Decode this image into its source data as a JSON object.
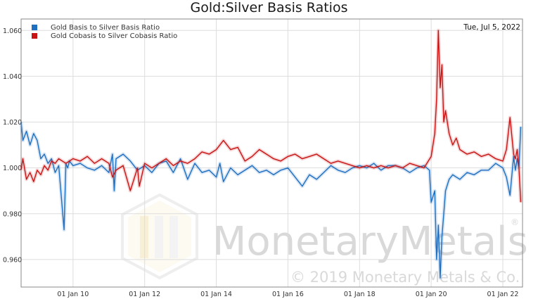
{
  "chart_data": {
    "type": "line",
    "title": "Gold:Silver Basis Ratios",
    "date_label": "Tue, Jul 5, 2022",
    "watermark": {
      "brand": "MonetaryMetals",
      "registered": "®",
      "copyright": "© 2019 Monetary Metals & Co."
    },
    "x_ticks": [
      "01 Jan 10",
      "01 Jan 12",
      "01 Jan 14",
      "01 Jan 16",
      "01 Jan 18",
      "01 Jan 20",
      "01 Jan 22"
    ],
    "x_tick_years": [
      2010,
      2012,
      2014,
      2016,
      2018,
      2020,
      2022
    ],
    "xlim": [
      2008.55,
      2022.55
    ],
    "ylim": [
      0.948,
      1.065
    ],
    "y_ticks": [
      0.96,
      0.98,
      1.0,
      1.02,
      1.04,
      1.06
    ],
    "y_tick_labels": [
      "0.960",
      "0.980",
      "1.000",
      "1.020",
      "1.040",
      "1.060"
    ],
    "grid": true,
    "legend_position": "top-left",
    "series": [
      {
        "name": "Gold Basis to Silver Basis Ratio",
        "color": "#1f6fc0",
        "x": [
          2008.55,
          2008.6,
          2008.7,
          2008.8,
          2008.9,
          2009.0,
          2009.1,
          2009.2,
          2009.3,
          2009.4,
          2009.5,
          2009.6,
          2009.75,
          2009.8,
          2009.85,
          2009.9,
          2010.0,
          2010.2,
          2010.4,
          2010.6,
          2010.8,
          2011.0,
          2011.1,
          2011.15,
          2011.2,
          2011.4,
          2011.6,
          2011.8,
          2012.0,
          2012.2,
          2012.4,
          2012.6,
          2012.8,
          2013.0,
          2013.2,
          2013.4,
          2013.6,
          2013.8,
          2014.0,
          2014.1,
          2014.2,
          2014.4,
          2014.6,
          2014.8,
          2015.0,
          2015.2,
          2015.4,
          2015.6,
          2015.8,
          2016.0,
          2016.2,
          2016.4,
          2016.6,
          2016.8,
          2017.0,
          2017.2,
          2017.4,
          2017.6,
          2017.8,
          2018.0,
          2018.2,
          2018.4,
          2018.6,
          2018.8,
          2019.0,
          2019.2,
          2019.4,
          2019.6,
          2019.8,
          2019.95,
          2020.0,
          2020.1,
          2020.15,
          2020.2,
          2020.25,
          2020.3,
          2020.35,
          2020.4,
          2020.5,
          2020.6,
          2020.7,
          2020.8,
          2021.0,
          2021.2,
          2021.4,
          2021.6,
          2021.8,
          2022.0,
          2022.1,
          2022.2,
          2022.3,
          2022.35,
          2022.4,
          2022.45,
          2022.5
        ],
        "y": [
          1.02,
          1.012,
          1.016,
          1.01,
          1.015,
          1.012,
          1.004,
          1.006,
          1.002,
          1.004,
          0.998,
          1.001,
          0.973,
          1.002,
          1.0,
          1.003,
          1.001,
          1.002,
          1.0,
          0.999,
          1.001,
          0.998,
          1.006,
          0.99,
          1.004,
          1.006,
          1.003,
          0.999,
          1.001,
          0.998,
          1.002,
          1.003,
          0.998,
          1.004,
          0.995,
          1.002,
          0.998,
          0.999,
          0.996,
          1.002,
          0.994,
          1.0,
          0.997,
          0.999,
          1.001,
          0.998,
          0.999,
          0.997,
          0.999,
          1.0,
          0.996,
          0.992,
          0.997,
          0.995,
          0.998,
          1.001,
          0.999,
          0.998,
          1.0,
          1.001,
          1.0,
          1.002,
          0.999,
          1.001,
          1.001,
          1.0,
          0.998,
          1.0,
          1.001,
          0.999,
          0.985,
          0.99,
          0.96,
          0.975,
          0.952,
          0.97,
          0.98,
          0.99,
          0.995,
          0.997,
          0.996,
          0.995,
          0.998,
          0.997,
          0.999,
          0.999,
          1.002,
          1.0,
          0.996,
          0.988,
          1.005,
          0.999,
          1.004,
          1.0,
          1.018
        ]
      },
      {
        "name": "Gold Cobasis to Silver Cobasis Ratio",
        "color": "#c81414",
        "x": [
          2008.55,
          2008.6,
          2008.7,
          2008.8,
          2008.9,
          2009.0,
          2009.1,
          2009.2,
          2009.3,
          2009.4,
          2009.5,
          2009.6,
          2009.8,
          2010.0,
          2010.2,
          2010.4,
          2010.6,
          2010.8,
          2011.0,
          2011.1,
          2011.2,
          2011.4,
          2011.6,
          2011.8,
          2011.85,
          2012.0,
          2012.2,
          2012.4,
          2012.6,
          2012.8,
          2013.0,
          2013.2,
          2013.4,
          2013.6,
          2013.8,
          2014.0,
          2014.2,
          2014.4,
          2014.6,
          2014.8,
          2015.0,
          2015.2,
          2015.4,
          2015.6,
          2015.8,
          2016.0,
          2016.2,
          2016.4,
          2016.6,
          2016.8,
          2017.0,
          2017.2,
          2017.4,
          2017.6,
          2017.8,
          2018.0,
          2018.2,
          2018.4,
          2018.6,
          2018.8,
          2019.0,
          2019.2,
          2019.4,
          2019.6,
          2019.8,
          2020.0,
          2020.1,
          2020.15,
          2020.2,
          2020.25,
          2020.3,
          2020.35,
          2020.4,
          2020.5,
          2020.6,
          2020.7,
          2020.8,
          2021.0,
          2021.2,
          2021.4,
          2021.6,
          2021.8,
          2022.0,
          2022.1,
          2022.2,
          2022.3,
          2022.35,
          2022.4,
          2022.45,
          2022.5
        ],
        "y": [
          0.999,
          1.004,
          0.995,
          0.998,
          0.994,
          0.999,
          0.997,
          1.001,
          0.999,
          1.003,
          1.002,
          1.004,
          1.002,
          1.004,
          1.003,
          1.005,
          1.002,
          1.004,
          1.002,
          0.996,
          0.999,
          1.001,
          0.99,
          1.0,
          0.992,
          1.002,
          1.0,
          1.002,
          1.004,
          1.001,
          1.003,
          1.002,
          1.004,
          1.007,
          1.006,
          1.008,
          1.012,
          1.008,
          1.009,
          1.003,
          1.005,
          1.008,
          1.006,
          1.004,
          1.003,
          1.005,
          1.006,
          1.004,
          1.005,
          1.006,
          1.004,
          1.002,
          1.003,
          1.002,
          1.001,
          1.0,
          1.001,
          1.0,
          1.001,
          1.0,
          1.001,
          1.0,
          1.002,
          1.001,
          1.0,
          1.005,
          1.015,
          1.03,
          1.06,
          1.035,
          1.045,
          1.02,
          1.025,
          1.015,
          1.01,
          1.013,
          1.008,
          1.006,
          1.007,
          1.005,
          1.006,
          1.004,
          1.003,
          1.008,
          1.022,
          1.006,
          1.004,
          1.008,
          1.0,
          0.985
        ]
      }
    ]
  }
}
